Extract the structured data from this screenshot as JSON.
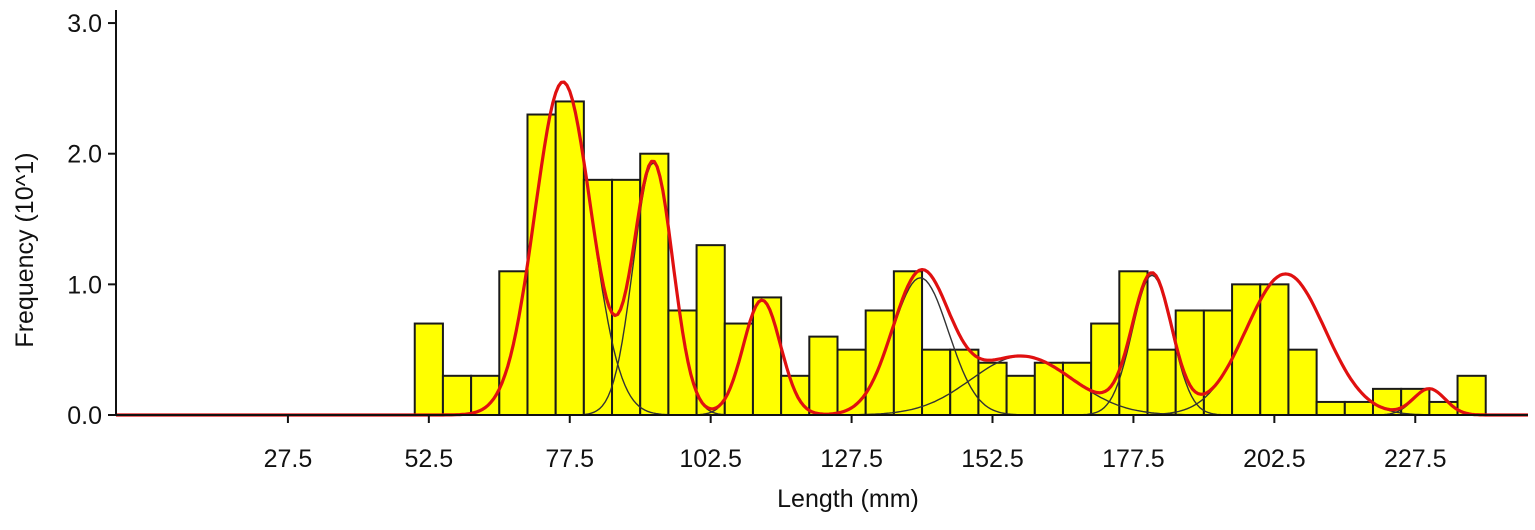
{
  "chart_data": {
    "type": "bar",
    "title": "",
    "xlabel": "Length (mm)",
    "ylabel": "Frequency (10^1)",
    "xlim": [
      -3,
      247.5
    ],
    "ylim": [
      0,
      3.1
    ],
    "bin_width": 5,
    "x_ticks": [
      27.5,
      52.5,
      77.5,
      102.5,
      127.5,
      152.5,
      177.5,
      202.5,
      227.5
    ],
    "x_tick_labels": [
      "27.5",
      "52.5",
      "77.5",
      "102.5",
      "127.5",
      "152.5",
      "177.5",
      "202.5",
      "227.5"
    ],
    "y_ticks": [
      0,
      1,
      2,
      3
    ],
    "y_tick_labels": [
      "0.0",
      "1.0",
      "2.0",
      "3.0"
    ],
    "grid": false,
    "legend": "none",
    "bins": [
      {
        "x": 52.5,
        "value": 0.7
      },
      {
        "x": 57.5,
        "value": 0.3
      },
      {
        "x": 62.5,
        "value": 0.3
      },
      {
        "x": 67.5,
        "value": 1.1
      },
      {
        "x": 72.5,
        "value": 2.3
      },
      {
        "x": 77.5,
        "value": 2.4
      },
      {
        "x": 82.5,
        "value": 1.8
      },
      {
        "x": 87.5,
        "value": 1.8
      },
      {
        "x": 92.5,
        "value": 2.0
      },
      {
        "x": 97.5,
        "value": 0.8
      },
      {
        "x": 102.5,
        "value": 1.3
      },
      {
        "x": 107.5,
        "value": 0.7
      },
      {
        "x": 112.5,
        "value": 0.9
      },
      {
        "x": 117.5,
        "value": 0.3
      },
      {
        "x": 122.5,
        "value": 0.6
      },
      {
        "x": 127.5,
        "value": 0.5
      },
      {
        "x": 132.5,
        "value": 0.8
      },
      {
        "x": 137.5,
        "value": 1.1
      },
      {
        "x": 142.5,
        "value": 0.5
      },
      {
        "x": 147.5,
        "value": 0.5
      },
      {
        "x": 152.5,
        "value": 0.4
      },
      {
        "x": 157.5,
        "value": 0.3
      },
      {
        "x": 162.5,
        "value": 0.4
      },
      {
        "x": 167.5,
        "value": 0.4
      },
      {
        "x": 172.5,
        "value": 0.7
      },
      {
        "x": 177.5,
        "value": 1.1
      },
      {
        "x": 182.5,
        "value": 0.5
      },
      {
        "x": 187.5,
        "value": 0.8
      },
      {
        "x": 192.5,
        "value": 0.8
      },
      {
        "x": 197.5,
        "value": 1.0
      },
      {
        "x": 202.5,
        "value": 1.0
      },
      {
        "x": 207.5,
        "value": 0.5
      },
      {
        "x": 212.5,
        "value": 0.1
      },
      {
        "x": 217.5,
        "value": 0.1
      },
      {
        "x": 222.5,
        "value": 0.2
      },
      {
        "x": 227.5,
        "value": 0.2
      },
      {
        "x": 232.5,
        "value": 0.1
      },
      {
        "x": 237.5,
        "value": 0.3
      }
    ],
    "components": [
      {
        "mean": 76.3,
        "sd": 5.0,
        "amplitude": 2.55
      },
      {
        "mean": 92.3,
        "sd": 3.5,
        "amplitude": 1.93
      },
      {
        "mean": 111.6,
        "sd": 3.3,
        "amplitude": 0.88
      },
      {
        "mean": 139.7,
        "sd": 5.0,
        "amplitude": 1.05
      },
      {
        "mean": 157.7,
        "sd": 9.0,
        "amplitude": 0.45
      },
      {
        "mean": 180.8,
        "sd": 3.5,
        "amplitude": 1.07
      },
      {
        "mean": 204.5,
        "sd": 7.0,
        "amplitude": 1.08
      },
      {
        "mean": 230.0,
        "sd": 2.8,
        "amplitude": 0.2
      }
    ],
    "colors": {
      "bar_fill": "#ffff00",
      "bar_stroke": "#1a1a1a",
      "component_line": "#333333",
      "total_fit_line": "#e01010",
      "axis": "#111111"
    }
  }
}
